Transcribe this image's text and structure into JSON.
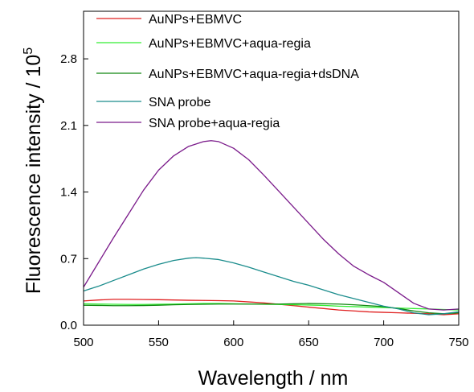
{
  "chart_data": {
    "type": "line",
    "title": "",
    "xlabel": "Wavelength / nm",
    "ylabel_main": "Fluorescence intensity / 10",
    "ylabel_sup": "5",
    "xlim": [
      500,
      750
    ],
    "ylim": [
      0,
      3.3
    ],
    "xticks": [
      500,
      550,
      600,
      650,
      700,
      750
    ],
    "yticks": [
      0.0,
      0.7,
      1.4,
      2.1,
      2.8
    ],
    "ytick_labels": [
      "0.0",
      "0.7",
      "1.4",
      "2.1",
      "2.8"
    ],
    "grid": false,
    "legend_position": "top-left",
    "series": [
      {
        "name": "AuNPs+EBMVC",
        "color": "#e02020",
        "x": [
          500,
          510,
          520,
          530,
          540,
          550,
          560,
          570,
          580,
          590,
          600,
          610,
          620,
          630,
          640,
          650,
          660,
          670,
          680,
          690,
          700,
          710,
          720,
          730,
          740,
          750
        ],
        "y": [
          0.255,
          0.265,
          0.272,
          0.272,
          0.27,
          0.268,
          0.265,
          0.262,
          0.26,
          0.258,
          0.255,
          0.245,
          0.235,
          0.22,
          0.205,
          0.19,
          0.175,
          0.16,
          0.15,
          0.14,
          0.135,
          0.13,
          0.125,
          0.12,
          0.11,
          0.12
        ]
      },
      {
        "name": "AuNPs+EBMVC+aqua-regia",
        "color": "#33ee33",
        "x": [
          500,
          510,
          520,
          530,
          540,
          550,
          560,
          570,
          580,
          590,
          600,
          610,
          620,
          630,
          640,
          650,
          660,
          670,
          680,
          690,
          700,
          710,
          720,
          730,
          740,
          750
        ],
        "y": [
          0.225,
          0.222,
          0.22,
          0.218,
          0.218,
          0.22,
          0.222,
          0.225,
          0.228,
          0.228,
          0.225,
          0.222,
          0.22,
          0.218,
          0.215,
          0.212,
          0.208,
          0.2,
          0.195,
          0.19,
          0.185,
          0.18,
          0.175,
          0.17,
          0.165,
          0.16
        ]
      },
      {
        "name": "AuNPs+EBMVC+aqua-regia+dsDNA",
        "color": "#118811",
        "x": [
          500,
          510,
          520,
          530,
          540,
          550,
          560,
          570,
          580,
          590,
          600,
          610,
          620,
          630,
          640,
          650,
          660,
          670,
          680,
          690,
          700,
          710,
          720,
          730,
          740,
          750
        ],
        "y": [
          0.21,
          0.208,
          0.205,
          0.205,
          0.207,
          0.21,
          0.215,
          0.218,
          0.22,
          0.222,
          0.222,
          0.222,
          0.222,
          0.222,
          0.225,
          0.228,
          0.225,
          0.222,
          0.215,
          0.205,
          0.195,
          0.175,
          0.15,
          0.13,
          0.12,
          0.13
        ]
      },
      {
        "name": "SNA probe",
        "color": "#1a8c8c",
        "x": [
          500,
          510,
          520,
          530,
          540,
          550,
          560,
          570,
          575,
          580,
          590,
          600,
          610,
          620,
          630,
          640,
          650,
          660,
          670,
          680,
          690,
          700,
          710,
          720,
          730,
          740,
          750
        ],
        "y": [
          0.36,
          0.41,
          0.47,
          0.53,
          0.59,
          0.64,
          0.68,
          0.705,
          0.71,
          0.705,
          0.69,
          0.655,
          0.61,
          0.56,
          0.51,
          0.46,
          0.42,
          0.37,
          0.32,
          0.28,
          0.24,
          0.2,
          0.17,
          0.13,
          0.11,
          0.12,
          0.14
        ]
      },
      {
        "name": "SNA probe+aqua-regia",
        "color": "#7a1a8a",
        "x": [
          500,
          510,
          520,
          530,
          540,
          550,
          560,
          570,
          580,
          585,
          590,
          600,
          610,
          620,
          630,
          640,
          650,
          660,
          670,
          680,
          690,
          700,
          710,
          720,
          730,
          740,
          750
        ],
        "y": [
          0.4,
          0.66,
          0.92,
          1.17,
          1.42,
          1.63,
          1.78,
          1.88,
          1.93,
          1.94,
          1.93,
          1.86,
          1.74,
          1.58,
          1.41,
          1.24,
          1.07,
          0.9,
          0.75,
          0.62,
          0.53,
          0.45,
          0.34,
          0.23,
          0.17,
          0.16,
          0.17
        ]
      }
    ]
  }
}
